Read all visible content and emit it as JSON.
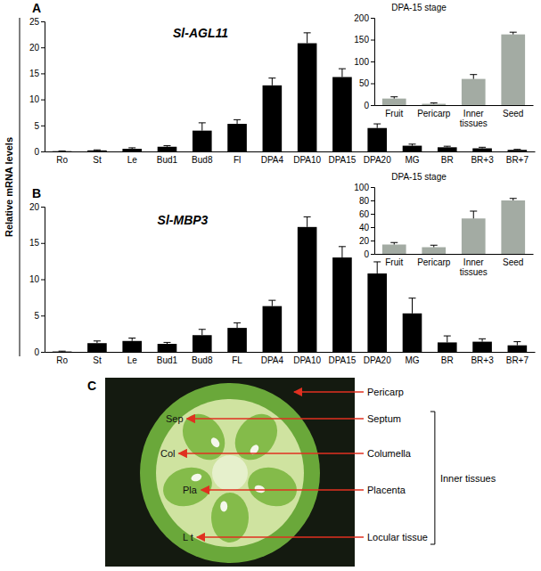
{
  "y_label": "Relative mRNA levels",
  "chart_data": [
    {
      "type": "bar",
      "letter": "A",
      "title": "Sl-AGL11",
      "categories": [
        "Ro",
        "St",
        "Le",
        "Bud1",
        "Bud8",
        "Fl",
        "DPA4",
        "DPA10",
        "DPA15",
        "DPA20",
        "MG",
        "BR",
        "BR+3",
        "BR+7"
      ],
      "values": [
        0.05,
        0.2,
        0.5,
        0.9,
        4.0,
        5.3,
        12.7,
        20.8,
        14.3,
        4.5,
        1.1,
        0.8,
        0.6,
        0.3
      ],
      "errors": [
        0.05,
        0.1,
        0.2,
        0.2,
        1.5,
        0.8,
        1.4,
        2.0,
        1.6,
        0.8,
        0.3,
        0.2,
        0.2,
        0.1
      ],
      "color": "#000000",
      "ylim": [
        0,
        25
      ],
      "yticks": [
        0,
        5,
        10,
        15,
        20,
        25
      ],
      "grid": false
    },
    {
      "type": "bar",
      "title": "DPA-15 stage",
      "categories": [
        "Fruit",
        "Pericarp",
        "Inner tissues",
        "Seed"
      ],
      "values": [
        15,
        3,
        60,
        162
      ],
      "errors": [
        4,
        2,
        10,
        5
      ],
      "color": "#a3aba3",
      "ylim": [
        0,
        200
      ],
      "yticks": [
        0,
        50,
        100,
        150,
        200
      ],
      "grid": false
    },
    {
      "type": "bar",
      "letter": "B",
      "title": "Sl-MBP3",
      "categories": [
        "Ro",
        "St",
        "Le",
        "Bud1",
        "Bud8",
        "FL",
        "DPA4",
        "DPA10",
        "DPA15",
        "DPA20",
        "MG",
        "BR",
        "BR+3",
        "BR+7"
      ],
      "values": [
        0.05,
        1.2,
        1.5,
        1.1,
        2.3,
        3.3,
        6.3,
        17.2,
        13.0,
        10.8,
        5.3,
        1.3,
        1.4,
        0.9
      ],
      "errors": [
        0.05,
        0.3,
        0.4,
        0.2,
        0.8,
        0.7,
        0.8,
        1.4,
        1.5,
        1.6,
        2.1,
        0.9,
        0.4,
        0.5
      ],
      "color": "#000000",
      "ylim": [
        0,
        20
      ],
      "yticks": [
        0,
        5,
        10,
        15,
        20
      ],
      "grid": false
    },
    {
      "type": "bar",
      "title": "DPA-15 stage",
      "categories": [
        "Fruit",
        "Pericarp",
        "Inner tissues",
        "Seed"
      ],
      "values": [
        14,
        10,
        53,
        80
      ],
      "errors": [
        3,
        3,
        11,
        3
      ],
      "color": "#a3aba3",
      "ylim": [
        0,
        100
      ],
      "yticks": [
        0,
        20,
        40,
        60,
        80,
        100
      ],
      "grid": false
    }
  ],
  "panel_c": {
    "letter": "C",
    "parts": [
      {
        "name": "Pericarp"
      },
      {
        "name": "Septum",
        "abbr": "Sep"
      },
      {
        "name": "Columella",
        "abbr": "Col"
      },
      {
        "name": "Placenta",
        "abbr": "Pla"
      },
      {
        "name": "Locular tissue",
        "abbr": "L t"
      }
    ],
    "group_label": "Inner tissues"
  }
}
